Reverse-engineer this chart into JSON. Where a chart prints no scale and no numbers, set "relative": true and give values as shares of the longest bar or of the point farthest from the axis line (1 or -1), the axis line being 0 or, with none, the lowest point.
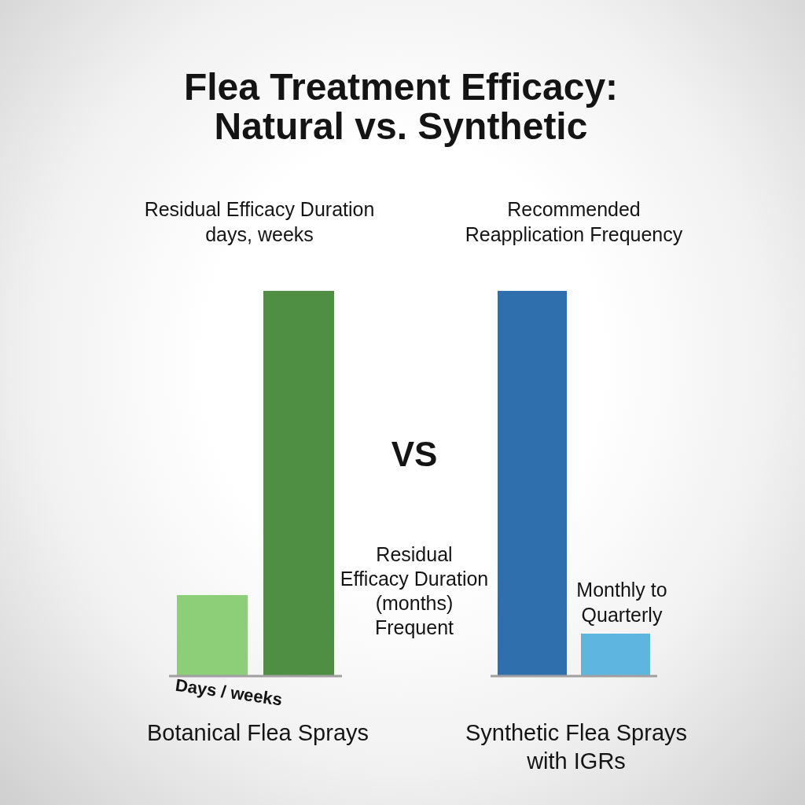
{
  "chart_data": [
    {
      "type": "other",
      "title": "Flea Treatment Efficacy: Natural vs. Synthetic",
      "annotations": [
        "VS"
      ]
    },
    {
      "type": "bar",
      "title": "Residual Efficacy Duration days, weeks",
      "xlabel": "Botanical Flea Sprays",
      "categories": [
        "Days / weeks",
        null
      ],
      "values": [
        0.21,
        1
      ],
      "colors": [
        "#8ccf78",
        "#4e8f43"
      ],
      "relative": true
    },
    {
      "type": "bar",
      "title": "Recommended Reapplication Frequency",
      "xlabel": "Synthetic Flea Sprays with IGRs",
      "categories": [
        null,
        null
      ],
      "values": [
        1,
        0.11
      ],
      "colors": [
        "#2f6fad",
        "#5eb6e0"
      ],
      "relative": true,
      "annotations": [
        "Residual\nEfficacy Duration\n(months)\nFrequent",
        "Monthly to Quarterly"
      ]
    }
  ]
}
